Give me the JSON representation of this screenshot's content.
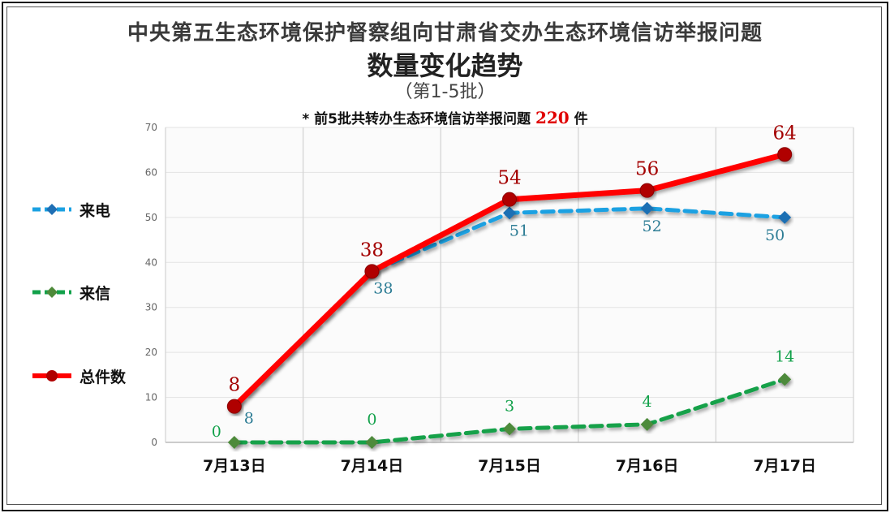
{
  "titles": {
    "line1": "中央第五生态环境保护督察组向甘肃省交办生态环境信访举报问题",
    "line2": "数量变化趋势",
    "line3": "（第1-5批）"
  },
  "note": {
    "prefix": "* 前5批共转办生态环境信访举报问题",
    "total": "220",
    "suffix": "件"
  },
  "chart_data": {
    "type": "line",
    "categories": [
      "7月13日",
      "7月14日",
      "7月15日",
      "7月16日",
      "7月17日"
    ],
    "series": [
      {
        "name": "来电",
        "values": [
          8,
          38,
          51,
          52,
          50
        ],
        "color": "#1ba1e2",
        "marker": "diamond",
        "style": "dashed",
        "label_color": "#2e7d95"
      },
      {
        "name": "来信",
        "values": [
          0,
          0,
          3,
          4,
          14
        ],
        "color": "#12a14a",
        "marker": "diamond",
        "style": "dashed",
        "label_color": "#12a14a"
      },
      {
        "name": "总件数",
        "values": [
          8,
          38,
          54,
          56,
          64
        ],
        "color": "#ff0000",
        "marker": "circle",
        "style": "solid",
        "label_color": "#a30000"
      }
    ],
    "ylim": [
      0,
      70
    ],
    "yticks": [
      0,
      10,
      20,
      30,
      40,
      50,
      60,
      70
    ],
    "grid": true,
    "legend_position": "left"
  }
}
